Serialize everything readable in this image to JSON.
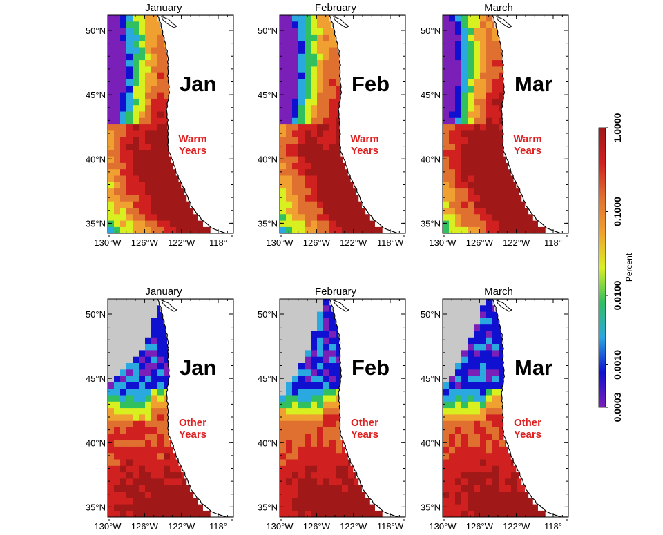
{
  "panels": [
    {
      "id": "jan-warm",
      "title": "January",
      "month_label": "Jan",
      "group_label": [
        "Warm",
        "Years"
      ]
    },
    {
      "id": "feb-warm",
      "title": "February",
      "month_label": "Feb",
      "group_label": [
        "Warm",
        "Years"
      ]
    },
    {
      "id": "mar-warm",
      "title": "March",
      "month_label": "Mar",
      "group_label": [
        "Warm",
        "Years"
      ]
    },
    {
      "id": "jan-other",
      "title": "January",
      "month_label": "Jan",
      "group_label": [
        "Other",
        "Years"
      ]
    },
    {
      "id": "feb-other",
      "title": "February",
      "month_label": "Feb",
      "group_label": [
        "Other",
        "Years"
      ]
    },
    {
      "id": "mar-other",
      "title": "March",
      "month_label": "Mar",
      "group_label": [
        "Other",
        "Years"
      ]
    }
  ],
  "axes": {
    "lat_ticks": [
      "35°N",
      "40°N",
      "45°N",
      "50°N"
    ],
    "lon_ticks": [
      "130°W",
      "126°W",
      "122°W",
      "118°"
    ],
    "lon_ticks_alt": [
      "130°W",
      "126°W",
      "122°W",
      "118°W"
    ]
  },
  "colorbar": {
    "label": "Percent",
    "ticks": [
      "0.0003",
      "0.0010",
      "0.0100",
      "0.1000",
      "1.0000"
    ],
    "scale": "log",
    "colors": [
      "#7a1fb8",
      "#1010d0",
      "#2aa8e0",
      "#30c060",
      "#d8f020",
      "#f0a030",
      "#e07030",
      "#d02020",
      "#a01818"
    ]
  },
  "colors": {
    "land": "#ffffff",
    "nodata": "#c8c8c8",
    "label_red": "#e02020"
  }
}
